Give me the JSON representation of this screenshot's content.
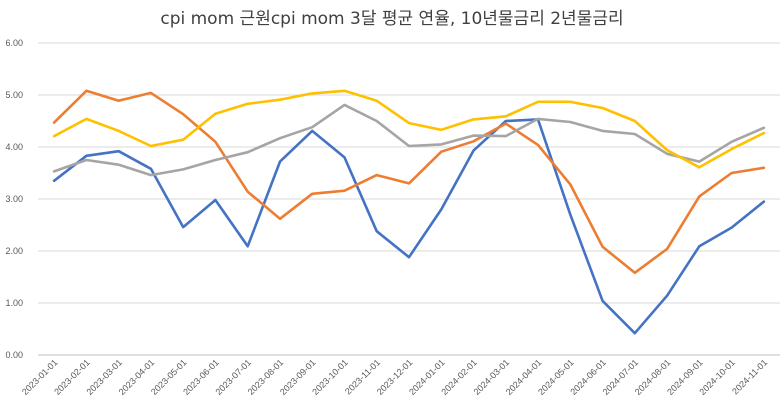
{
  "chart_data": {
    "type": "line",
    "title": "cpi mom 근원cpi mom 3달 평균 연율, 10년물금리 2년물금리",
    "xlabel": "",
    "ylabel": "",
    "ylim": [
      0,
      6
    ],
    "y_ticks": [
      "0.00",
      "1.00",
      "2.00",
      "3.00",
      "4.00",
      "5.00",
      "6.00"
    ],
    "y_tick_values": [
      0,
      1,
      2,
      3,
      4,
      5,
      6
    ],
    "grid": true,
    "legend": "none",
    "categories": [
      "2023-01-01",
      "2023-02-01",
      "2023-03-01",
      "2023-04-01",
      "2023-05-01",
      "2023-06-01",
      "2023-07-01",
      "2023-08-01",
      "2023-09-01",
      "2023-10-01",
      "2023-11-01",
      "2023-12-01",
      "2024-01-01",
      "2024-02-01",
      "2024-03-01",
      "2024-04-01",
      "2024-05-01",
      "2024-06-01",
      "2024-07-01",
      "2024-08-01",
      "2024-09-01",
      "2024-10-01",
      "2024-11-01"
    ],
    "series": [
      {
        "name": "cpi mom",
        "color": "#4472C4",
        "values": [
          3.35,
          3.83,
          3.92,
          3.58,
          2.46,
          2.98,
          2.09,
          3.72,
          4.31,
          3.8,
          2.38,
          1.88,
          2.8,
          3.93,
          4.5,
          4.53,
          2.7,
          1.04,
          0.42,
          1.14,
          2.09,
          2.45,
          2.95
        ]
      },
      {
        "name": "근원cpi mom 3달 평균 연율",
        "color": "#ED7D31",
        "values": [
          4.47,
          5.08,
          4.89,
          5.04,
          4.63,
          4.1,
          3.14,
          2.62,
          3.1,
          3.16,
          3.46,
          3.3,
          3.91,
          4.11,
          4.45,
          4.04,
          3.28,
          2.08,
          1.58,
          2.04,
          3.05,
          3.5,
          3.6
        ]
      },
      {
        "name": "10년물금리",
        "color": "#A5A5A5",
        "values": [
          3.53,
          3.75,
          3.66,
          3.46,
          3.57,
          3.75,
          3.9,
          4.17,
          4.38,
          4.81,
          4.5,
          4.02,
          4.05,
          4.22,
          4.21,
          4.54,
          4.48,
          4.31,
          4.25,
          3.87,
          3.72,
          4.1,
          4.37
        ]
      },
      {
        "name": "2년물금리",
        "color": "#FFC000",
        "values": [
          4.21,
          4.54,
          4.31,
          4.02,
          4.14,
          4.64,
          4.83,
          4.91,
          5.03,
          5.08,
          4.89,
          4.46,
          4.33,
          4.53,
          4.59,
          4.87,
          4.87,
          4.75,
          4.5,
          3.94,
          3.61,
          3.96,
          4.27
        ]
      }
    ]
  }
}
